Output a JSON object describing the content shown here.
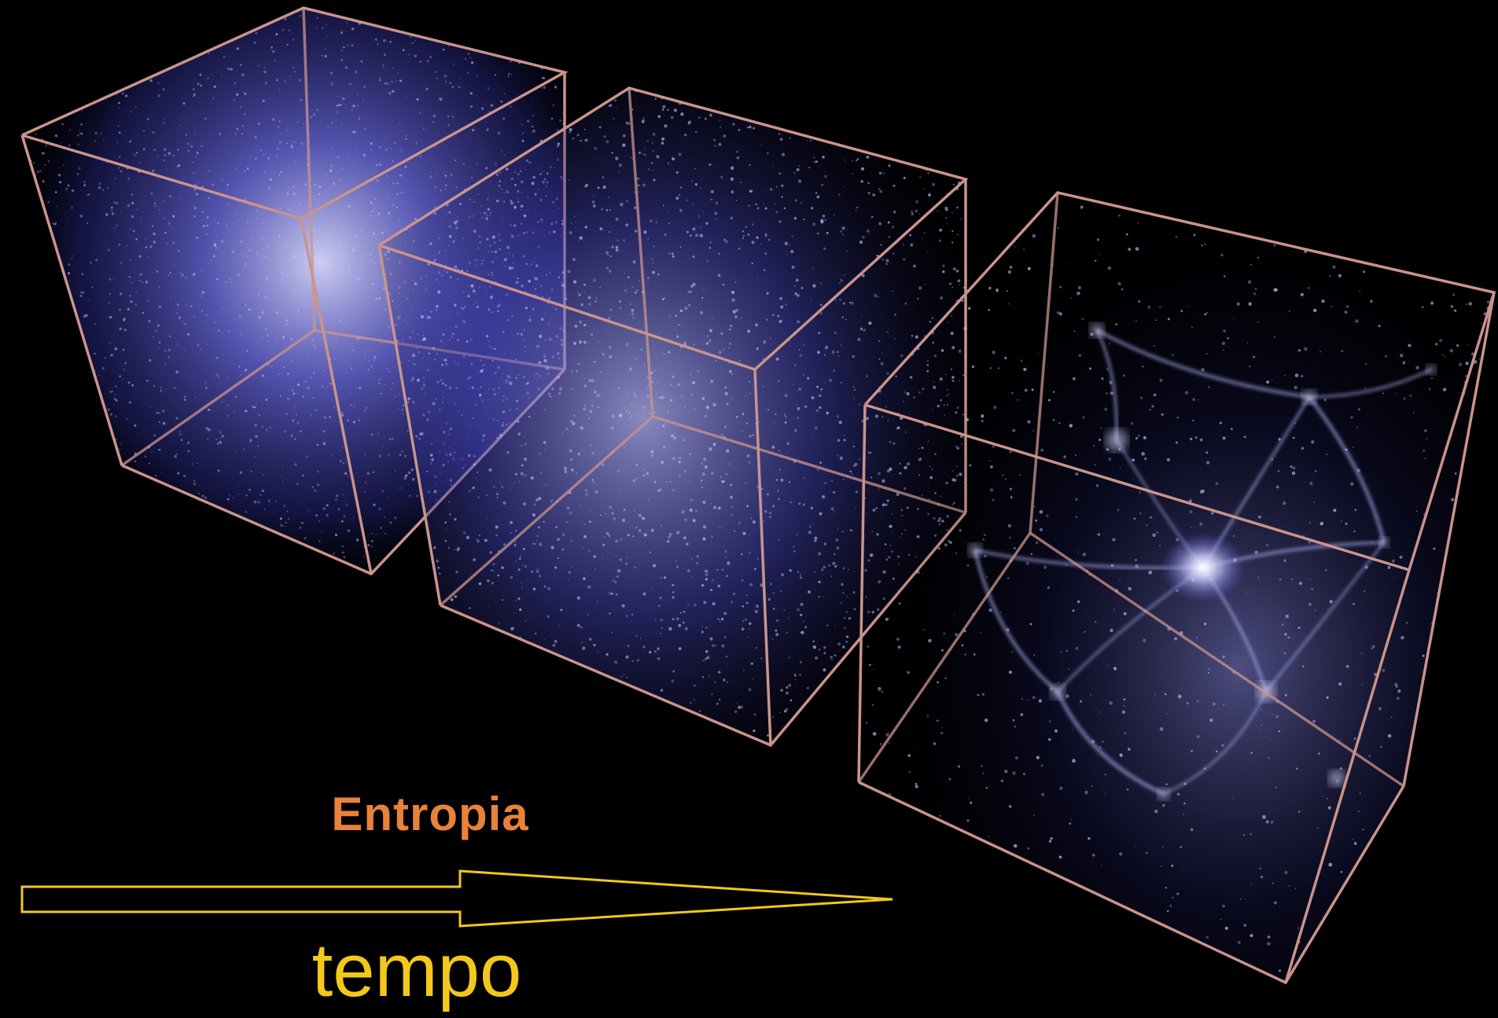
{
  "labels": {
    "entropia": "Entropia",
    "tempo": "tempo"
  },
  "colors": {
    "background": "#000000",
    "cube_edge": "#c9948c",
    "cube_glow": "#6f6fe8",
    "filament": "#b8baff",
    "entropia_text": "#e8823a",
    "tempo_arrow": "#f2c81a"
  },
  "icons": {
    "arrow": "time-arrow-icon"
  }
}
